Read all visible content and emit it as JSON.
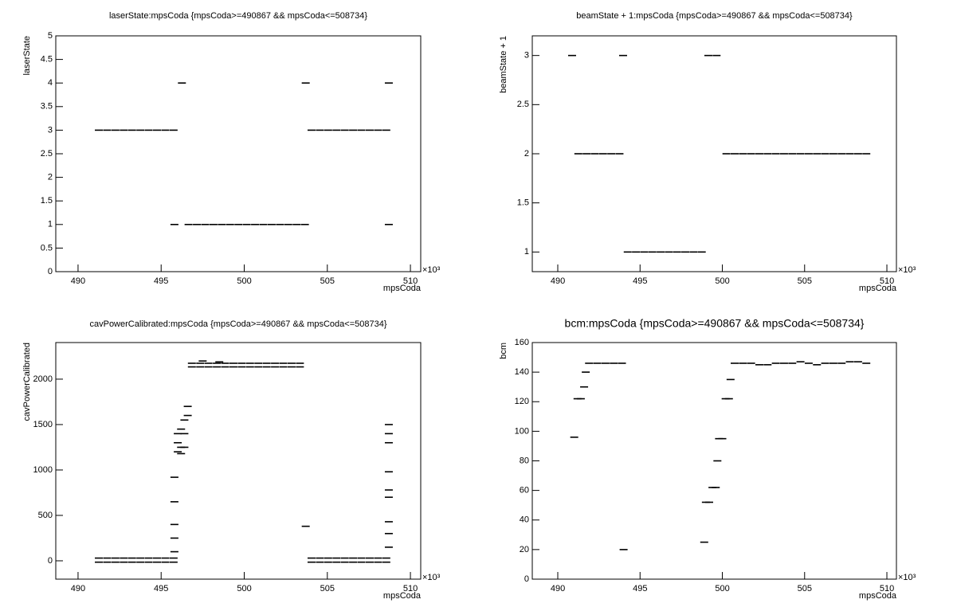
{
  "chart_data": [
    {
      "type": "scatter",
      "title": "laserState:mpsCoda {mpsCoda>=490867 && mpsCoda<=508734}",
      "xlabel": "mpsCoda",
      "ylabel": "laserState",
      "x_multiplier": "×10³",
      "color": "#000000",
      "xlim": [
        488.66,
        510.62
      ],
      "xticks": [
        490,
        495,
        500,
        505,
        510
      ],
      "ylim": [
        0,
        5
      ],
      "yticks": [
        0,
        0.5,
        1,
        1.5,
        2,
        2.5,
        3,
        3.5,
        4,
        4.5,
        5
      ],
      "x": [
        491.25,
        491.75,
        492.25,
        492.75,
        493.25,
        493.75,
        494.25,
        494.75,
        495.25,
        495.75,
        495.8,
        496.25,
        496.65,
        497.15,
        497.65,
        498.15,
        498.65,
        499.15,
        499.65,
        500.15,
        500.65,
        501.15,
        501.65,
        502.15,
        502.65,
        503.15,
        503.65,
        503.7,
        504.05,
        504.55,
        505.05,
        505.55,
        506.05,
        506.55,
        507.05,
        507.55,
        508.05,
        508.55,
        508.7,
        508.7
      ],
      "values": [
        3,
        3,
        3,
        3,
        3,
        3,
        3,
        3,
        3,
        3,
        1,
        4,
        1,
        1,
        1,
        1,
        1,
        1,
        1,
        1,
        1,
        1,
        1,
        1,
        1,
        1,
        1,
        4,
        3,
        3,
        3,
        3,
        3,
        3,
        3,
        3,
        3,
        3,
        4,
        1
      ]
    },
    {
      "type": "scatter",
      "title": "beamState + 1:mpsCoda {mpsCoda>=490867 && mpsCoda<=508734}",
      "xlabel": "mpsCoda",
      "ylabel": "beamState + 1",
      "x_multiplier": "×10³",
      "color": "#000000",
      "xlim": [
        488.45,
        510.58
      ],
      "xticks": [
        490,
        495,
        500,
        505,
        510
      ],
      "ylim": [
        0.8,
        3.2
      ],
      "yticks": [
        1,
        1.5,
        2,
        2.5,
        3
      ],
      "x": [
        490.87,
        493.97,
        499.15,
        499.65,
        491.25,
        491.75,
        492.25,
        492.75,
        493.25,
        493.75,
        494.25,
        494.75,
        495.25,
        495.75,
        496.25,
        496.75,
        497.25,
        497.75,
        498.25,
        498.75,
        500.25,
        500.75,
        501.25,
        501.75,
        502.25,
        502.75,
        503.25,
        503.75,
        504.25,
        504.75,
        505.25,
        505.75,
        506.25,
        506.75,
        507.25,
        507.75,
        508.25,
        508.75
      ],
      "values": [
        3,
        3,
        3,
        3,
        2,
        2,
        2,
        2,
        2,
        2,
        1,
        1,
        1,
        1,
        1,
        1,
        1,
        1,
        1,
        1,
        2,
        2,
        2,
        2,
        2,
        2,
        2,
        2,
        2,
        2,
        2,
        2,
        2,
        2,
        2,
        2,
        2,
        2
      ]
    },
    {
      "type": "scatter",
      "title": "cavPowerCalibrated:mpsCoda {mpsCoda>=490867 && mpsCoda<=508734}",
      "xlabel": "mpsCoda",
      "ylabel": "cavPowerCalibrated",
      "x_multiplier": "×10³",
      "color": "#000000",
      "xlim": [
        488.66,
        510.62
      ],
      "xticks": [
        490,
        495,
        500,
        505,
        510
      ],
      "ylim": [
        -202,
        2403
      ],
      "yticks": [
        0,
        500,
        1000,
        1500,
        2000
      ],
      "x": [
        491.25,
        491.75,
        492.25,
        492.75,
        493.25,
        493.75,
        494.25,
        494.75,
        495.25,
        495.75,
        491.25,
        491.75,
        492.25,
        492.75,
        493.25,
        493.75,
        494.25,
        494.75,
        495.25,
        495.75,
        504.05,
        504.55,
        505.05,
        505.55,
        506.05,
        506.55,
        507.05,
        507.55,
        508.05,
        508.55,
        504.05,
        504.55,
        505.05,
        505.55,
        506.05,
        506.55,
        507.05,
        507.55,
        508.05,
        508.55,
        496.85,
        497.35,
        497.85,
        498.35,
        498.85,
        499.35,
        499.85,
        500.35,
        500.85,
        501.35,
        501.85,
        502.35,
        502.85,
        503.35,
        496.85,
        497.35,
        497.85,
        498.35,
        498.85,
        499.35,
        499.85,
        500.35,
        500.85,
        501.35,
        501.85,
        502.35,
        502.85,
        503.35,
        495.8,
        495.8,
        495.8,
        495.8,
        495.8,
        496.0,
        496.0,
        496.0,
        496.2,
        496.2,
        496.2,
        496.4,
        496.4,
        496.4,
        496.6,
        496.6,
        497.5,
        498.5,
        503.7,
        508.7,
        508.7,
        508.7,
        508.7,
        508.7,
        508.7,
        508.7,
        508.7,
        508.7
      ],
      "values": [
        30,
        30,
        30,
        30,
        30,
        30,
        30,
        30,
        30,
        30,
        -15,
        -15,
        -15,
        -15,
        -15,
        -15,
        -15,
        -15,
        -15,
        -15,
        30,
        30,
        30,
        30,
        30,
        30,
        30,
        30,
        30,
        30,
        -15,
        -15,
        -15,
        -15,
        -15,
        -15,
        -15,
        -15,
        -15,
        -15,
        2175,
        2175,
        2175,
        2175,
        2175,
        2175,
        2175,
        2175,
        2175,
        2175,
        2175,
        2175,
        2175,
        2175,
        2135,
        2135,
        2135,
        2135,
        2135,
        2135,
        2135,
        2135,
        2135,
        2135,
        2135,
        2135,
        2135,
        2135,
        100,
        250,
        400,
        650,
        920,
        1200,
        1300,
        1400,
        1180,
        1250,
        1450,
        1250,
        1400,
        1550,
        1600,
        1700,
        2200,
        2190,
        380,
        150,
        300,
        430,
        700,
        780,
        980,
        1300,
        1400,
        1500
      ]
    },
    {
      "type": "scatter",
      "title": "bcm:mpsCoda {mpsCoda>=490867 && mpsCoda<=508734}",
      "xlabel": "mpsCoda",
      "ylabel": "bcm",
      "x_multiplier": "×10³",
      "color": "#000000",
      "xlim": [
        488.45,
        510.58
      ],
      "xticks": [
        490,
        495,
        500,
        505,
        510
      ],
      "ylim": [
        0,
        160
      ],
      "yticks": [
        0,
        20,
        40,
        60,
        80,
        100,
        120,
        140,
        160
      ],
      "x": [
        491.0,
        491.2,
        491.4,
        491.6,
        491.7,
        491.9,
        492.4,
        492.9,
        493.4,
        493.9,
        494.0,
        498.9,
        499.0,
        499.2,
        499.4,
        499.6,
        499.7,
        499.8,
        500.0,
        500.2,
        500.4,
        500.5,
        500.75,
        501.25,
        501.75,
        502.25,
        502.75,
        503.25,
        503.75,
        504.25,
        504.75,
        505.25,
        505.75,
        506.25,
        506.75,
        507.25,
        507.75,
        508.25,
        508.75
      ],
      "values": [
        96,
        122,
        122,
        130,
        140,
        146,
        146,
        146,
        146,
        146,
        20,
        25,
        52,
        52,
        62,
        62,
        80,
        95,
        95,
        122,
        122,
        135,
        146,
        146,
        146,
        145,
        145,
        146,
        146,
        146,
        147,
        146,
        145,
        146,
        146,
        146,
        147,
        147,
        146
      ]
    }
  ]
}
